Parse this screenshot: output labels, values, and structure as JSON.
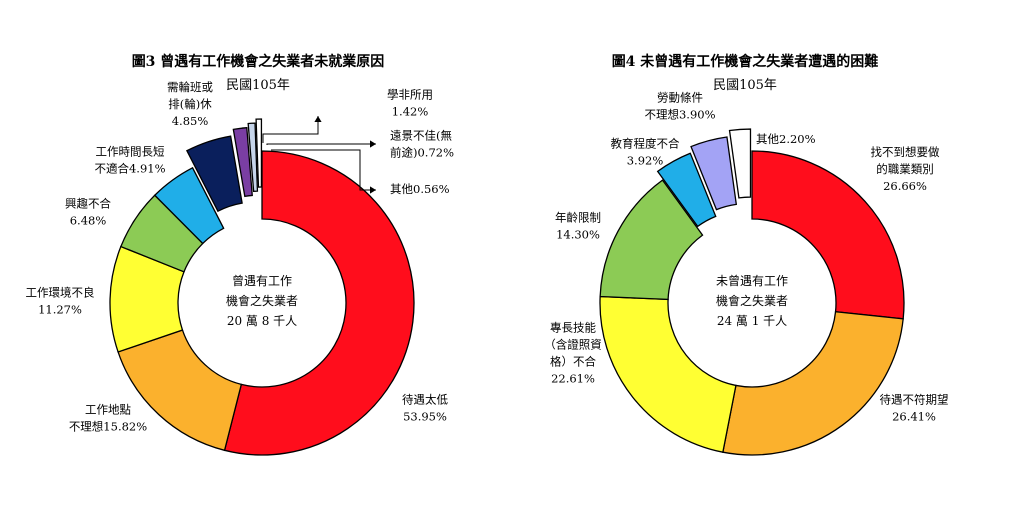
{
  "chart_data": [
    {
      "type": "pie",
      "title": "圖3  曾遇有工作機會之失業者未就業原因",
      "subtitle": "民國105年",
      "center_text": [
        "曾遇有工作",
        "機會之失業者",
        "20 萬 8 千人"
      ],
      "slices": [
        {
          "label": "待遇太低",
          "value": 53.95,
          "value_text": "53.95%",
          "color": "#ff0d1c"
        },
        {
          "label": "工作地點不理想",
          "value": 15.82,
          "value_text": "15.82%",
          "color": "#fbb12d"
        },
        {
          "label": "工作環境不良",
          "value": 11.27,
          "value_text": "11.27%",
          "color": "#ffff33"
        },
        {
          "label": "興趣不合",
          "value": 6.48,
          "value_text": "6.48%",
          "color": "#8ccb55"
        },
        {
          "label": "工作時間長短不適合",
          "value": 4.91,
          "value_text": "4.91%",
          "color": "#20aee8"
        },
        {
          "label": "需輪班或排(輪)休",
          "value": 4.85,
          "value_text": "4.85%",
          "color": "#0a1f5c"
        },
        {
          "label": "學非所用",
          "value": 1.42,
          "value_text": "1.42%",
          "color": "#7a3ea3"
        },
        {
          "label": "遠景不佳(無前途)",
          "value": 0.72,
          "value_text": "0.72%",
          "color": "#c6d5ea"
        },
        {
          "label": "其他",
          "value": 0.56,
          "value_text": "0.56%",
          "color": "#ffffff"
        }
      ],
      "callouts": [
        {
          "lines": [
            "待遇太低",
            "53.95%"
          ]
        },
        {
          "lines": [
            "工作地點",
            "不理想15.82%"
          ]
        },
        {
          "lines": [
            "工作環境不良",
            "11.27%"
          ]
        },
        {
          "lines": [
            "興趣不合",
            "6.48%"
          ]
        },
        {
          "lines": [
            "工作時間長短",
            "不適合4.91%"
          ]
        },
        {
          "lines": [
            "需輪班或",
            "排(輪)休",
            "4.85%"
          ]
        },
        {
          "lines": [
            "學非所用",
            "1.42%"
          ]
        },
        {
          "lines": [
            "遠景不佳(無",
            "前途)0.72%"
          ]
        },
        {
          "lines": [
            "其他0.56%"
          ]
        }
      ]
    },
    {
      "type": "pie",
      "title": "圖4 未曾遇有工作機會之失業者遭遇的困難",
      "subtitle": "民國105年",
      "center_text": [
        "未曾遇有工作",
        "機會之失業者",
        "24 萬 1 千人"
      ],
      "slices": [
        {
          "label": "找不到想要做的職業類別",
          "value": 26.66,
          "value_text": "26.66%",
          "color": "#ff0d1c"
        },
        {
          "label": "待遇不符期望",
          "value": 26.41,
          "value_text": "26.41%",
          "color": "#fbb12d"
        },
        {
          "label": "專長技能(含證照資格)不合",
          "value": 22.61,
          "value_text": "22.61%",
          "color": "#ffff33"
        },
        {
          "label": "年齡限制",
          "value": 14.3,
          "value_text": "14.30%",
          "color": "#8ccb55"
        },
        {
          "label": "教育程度不合",
          "value": 3.92,
          "value_text": "3.92%",
          "color": "#20aee8"
        },
        {
          "label": "勞動條件不理想",
          "value": 3.9,
          "value_text": "3.90%",
          "color": "#a3a3f5"
        },
        {
          "label": "其他",
          "value": 2.2,
          "value_text": "2.20%",
          "color": "#ffffff"
        }
      ],
      "callouts": [
        {
          "lines": [
            "找不到想要做",
            "的職業類別",
            "26.66%"
          ]
        },
        {
          "lines": [
            "待遇不符期望",
            "26.41%"
          ]
        },
        {
          "lines": [
            "專長技能",
            "（含證照資",
            "格）不合",
            "22.61%"
          ]
        },
        {
          "lines": [
            "年齡限制",
            "14.30%"
          ]
        },
        {
          "lines": [
            "教育程度不合",
            "3.92%"
          ]
        },
        {
          "lines": [
            "勞動條件",
            "不理想3.90%"
          ]
        },
        {
          "lines": [
            "其他2.20%"
          ]
        }
      ]
    }
  ]
}
